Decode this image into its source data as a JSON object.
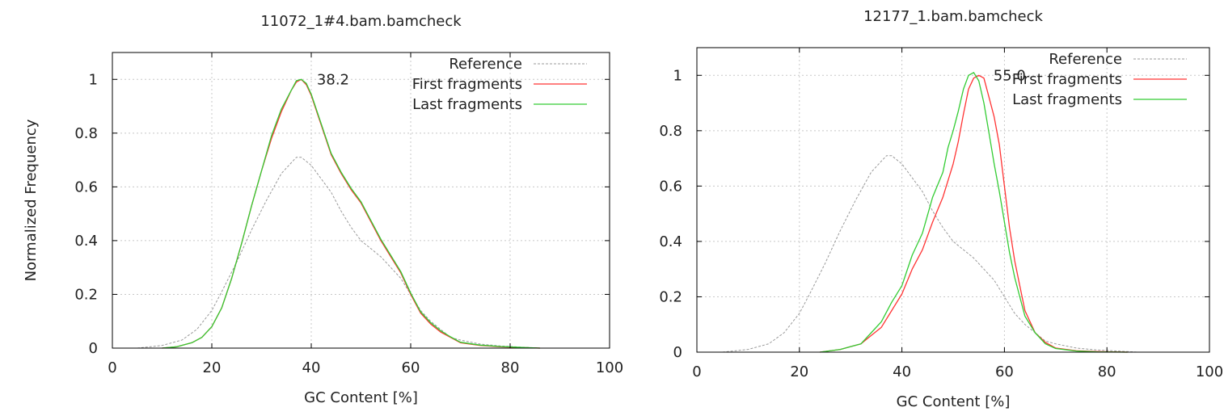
{
  "chart_data": [
    {
      "type": "line",
      "title": "11072_1#4.bam.bamcheck",
      "xlabel": "GC Content [%]",
      "ylabel": "Normalized Frequency",
      "xlim": [
        0,
        100
      ],
      "ylim": [
        0,
        1.1
      ],
      "xticks": [
        "0",
        "20",
        "40",
        "60",
        "80",
        "100"
      ],
      "yticks": [
        "0",
        "0.2",
        "0.4",
        "0.6",
        "0.8",
        "1"
      ],
      "grid": true,
      "legend_position": "top-right",
      "annotation": {
        "text": "38.2",
        "x": 38.2,
        "y": 1.0
      },
      "series": [
        {
          "name": "Reference",
          "color": "#999999",
          "dashed": true,
          "x": [
            5,
            10,
            14,
            17,
            20,
            22,
            25,
            28,
            31,
            34,
            36,
            37,
            38,
            40,
            42,
            44,
            46,
            48,
            50,
            52,
            54,
            56,
            58,
            60,
            62,
            64,
            66,
            68,
            70,
            74,
            78,
            82,
            86
          ],
          "y": [
            0,
            0.01,
            0.03,
            0.07,
            0.14,
            0.21,
            0.32,
            0.44,
            0.55,
            0.65,
            0.69,
            0.71,
            0.71,
            0.68,
            0.63,
            0.58,
            0.51,
            0.45,
            0.4,
            0.37,
            0.34,
            0.3,
            0.26,
            0.2,
            0.14,
            0.1,
            0.07,
            0.04,
            0.03,
            0.015,
            0.008,
            0.004,
            0
          ]
        },
        {
          "name": "First fragments",
          "color": "#ff3333",
          "dashed": false,
          "x": [
            10,
            13,
            16,
            18,
            20,
            22,
            24,
            26,
            28,
            30,
            32,
            34,
            36,
            37,
            38,
            39,
            40,
            42,
            44,
            46,
            48,
            50,
            52,
            54,
            56,
            58,
            60,
            62,
            64,
            66,
            68,
            70,
            74,
            78,
            82,
            86
          ],
          "y": [
            0,
            0.005,
            0.02,
            0.04,
            0.08,
            0.15,
            0.26,
            0.39,
            0.53,
            0.66,
            0.78,
            0.88,
            0.96,
            0.99,
            1.0,
            0.98,
            0.94,
            0.83,
            0.72,
            0.65,
            0.59,
            0.54,
            0.47,
            0.4,
            0.34,
            0.28,
            0.2,
            0.13,
            0.09,
            0.06,
            0.04,
            0.02,
            0.01,
            0.005,
            0.002,
            0
          ]
        },
        {
          "name": "Last fragments",
          "color": "#33cc33",
          "dashed": false,
          "x": [
            10,
            13,
            16,
            18,
            20,
            22,
            24,
            26,
            28,
            30,
            32,
            34,
            36,
            37,
            38,
            39,
            40,
            42,
            44,
            46,
            48,
            50,
            52,
            54,
            56,
            58,
            60,
            62,
            64,
            66,
            68,
            70,
            74,
            78,
            82,
            86
          ],
          "y": [
            0,
            0.005,
            0.02,
            0.04,
            0.08,
            0.15,
            0.26,
            0.39,
            0.53,
            0.66,
            0.79,
            0.89,
            0.96,
            0.995,
            1.0,
            0.985,
            0.945,
            0.835,
            0.725,
            0.655,
            0.595,
            0.545,
            0.475,
            0.405,
            0.345,
            0.285,
            0.205,
            0.135,
            0.095,
            0.065,
            0.042,
            0.022,
            0.011,
            0.006,
            0.003,
            0
          ]
        }
      ]
    },
    {
      "type": "line",
      "title": "12177_1.bam.bamcheck",
      "xlabel": "GC Content [%]",
      "ylabel": "",
      "xlim": [
        0,
        100
      ],
      "ylim": [
        0,
        1.1
      ],
      "xticks": [
        "0",
        "20",
        "40",
        "60",
        "80",
        "100"
      ],
      "yticks": [
        "0",
        "0.2",
        "0.4",
        "0.6",
        "0.8",
        "1"
      ],
      "grid": true,
      "legend_position": "top-right",
      "annotation": {
        "text": "55.0",
        "x": 55.0,
        "y": 1.0
      },
      "series": [
        {
          "name": "Reference",
          "color": "#999999",
          "dashed": true,
          "x": [
            5,
            10,
            14,
            17,
            20,
            22,
            25,
            28,
            31,
            34,
            36,
            37,
            38,
            40,
            42,
            44,
            46,
            48,
            50,
            52,
            54,
            56,
            58,
            60,
            62,
            64,
            66,
            68,
            70,
            74,
            78,
            82,
            86
          ],
          "y": [
            0,
            0.01,
            0.03,
            0.07,
            0.14,
            0.21,
            0.32,
            0.44,
            0.55,
            0.65,
            0.69,
            0.71,
            0.71,
            0.68,
            0.63,
            0.58,
            0.51,
            0.45,
            0.4,
            0.37,
            0.34,
            0.3,
            0.26,
            0.2,
            0.14,
            0.1,
            0.07,
            0.04,
            0.03,
            0.015,
            0.008,
            0.004,
            0
          ]
        },
        {
          "name": "First fragments",
          "color": "#ff3333",
          "dashed": false,
          "x": [
            24,
            28,
            30,
            32,
            34,
            36,
            38,
            40,
            42,
            44,
            46,
            48,
            50,
            51,
            52,
            53,
            54,
            55,
            56,
            57,
            58,
            59,
            60,
            61,
            62,
            63,
            64,
            66,
            68,
            70,
            74,
            78,
            84
          ],
          "y": [
            0,
            0.01,
            0.02,
            0.03,
            0.06,
            0.09,
            0.15,
            0.21,
            0.3,
            0.37,
            0.47,
            0.56,
            0.68,
            0.76,
            0.86,
            0.95,
            0.99,
            1.0,
            0.99,
            0.92,
            0.85,
            0.75,
            0.6,
            0.45,
            0.33,
            0.24,
            0.15,
            0.07,
            0.035,
            0.015,
            0.005,
            0.002,
            0
          ]
        },
        {
          "name": "Last fragments",
          "color": "#33cc33",
          "dashed": false,
          "x": [
            24,
            28,
            30,
            32,
            34,
            36,
            38,
            40,
            42,
            44,
            46,
            48,
            49,
            50,
            51,
            52,
            53,
            54,
            55,
            56,
            57,
            58,
            59,
            60,
            61,
            62,
            63,
            64,
            66,
            68,
            70,
            74,
            78,
            84
          ],
          "y": [
            0,
            0.01,
            0.02,
            0.03,
            0.07,
            0.11,
            0.18,
            0.24,
            0.35,
            0.43,
            0.56,
            0.65,
            0.74,
            0.8,
            0.87,
            0.95,
            1.0,
            1.01,
            0.98,
            0.9,
            0.79,
            0.68,
            0.58,
            0.47,
            0.36,
            0.27,
            0.2,
            0.13,
            0.07,
            0.03,
            0.013,
            0.004,
            0.001,
            0
          ]
        }
      ]
    }
  ]
}
